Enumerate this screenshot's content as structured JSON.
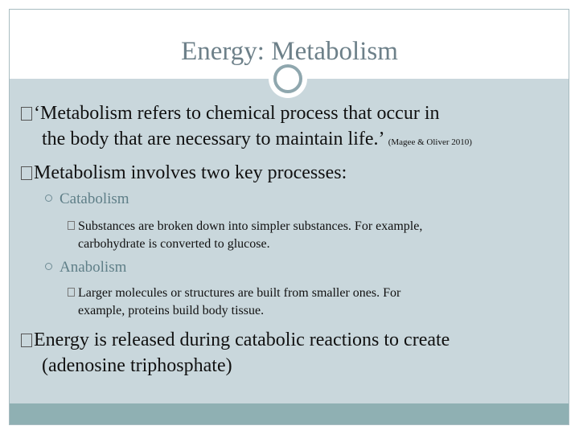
{
  "slide": {
    "title": "Energy: Metabolism",
    "bullets": [
      {
        "line1": "‘Metabolism refers to chemical process that occur in",
        "line2": "the body that are necessary to maintain life.’",
        "citation": "(Magee & Oliver 2010)"
      },
      {
        "line1": "Metabolism involves two key processes:"
      },
      {
        "label": "Catabolism",
        "detail_line1": "Substances are broken down into simpler substances. For example,",
        "detail_line2": "carbohydrate is converted to glucose."
      },
      {
        "label": "Anabolism",
        "detail_line1": "Larger molecules or structures are built from smaller ones. For",
        "detail_line2": "example, proteins build body tissue."
      },
      {
        "line1": "Energy is released during catabolic reactions to create",
        "line2": "(adenosine triphosphate)"
      }
    ]
  }
}
